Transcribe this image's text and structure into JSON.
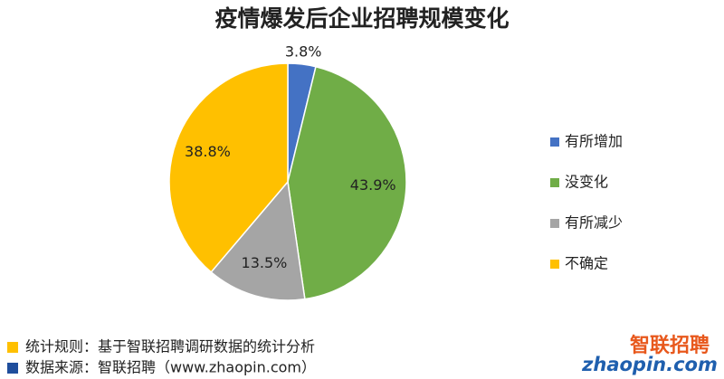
{
  "chart_data": {
    "type": "pie",
    "title": "疫情爆发后企业招聘规模变化",
    "categories": [
      "有所增加",
      "没变化",
      "有所减少",
      "不确定"
    ],
    "values": [
      3.8,
      43.9,
      13.5,
      38.8
    ],
    "value_labels": [
      "3.8%",
      "43.9%",
      "13.5%",
      "38.8%"
    ],
    "colors": [
      "#4472c4",
      "#70ad47",
      "#a5a5a5",
      "#ffc000"
    ],
    "legend": "right"
  },
  "notes": [
    "统计规则：基于智联招聘调研数据的统计分析",
    "数据来源：智联招聘（www.zhaopin.com）"
  ],
  "logo": {
    "name": "智联招聘",
    "domain": "zhaopin.com"
  }
}
